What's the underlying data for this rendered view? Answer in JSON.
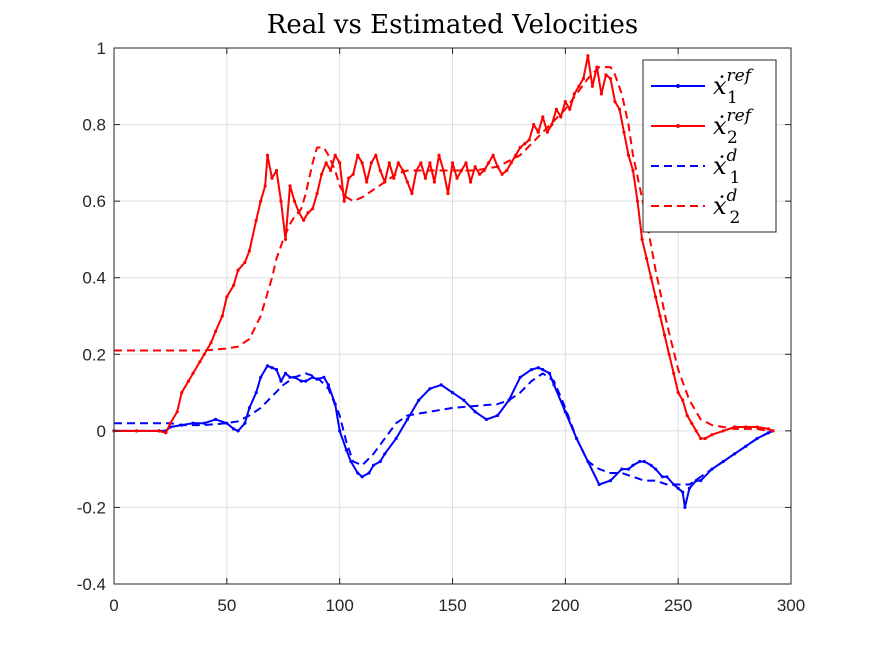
{
  "chart_data": {
    "type": "line",
    "title": "Real vs Estimated Velocities",
    "xlabel": "",
    "ylabel": "",
    "xlim": [
      0,
      300
    ],
    "ylim": [
      -0.4,
      1
    ],
    "xticks": [
      0,
      50,
      100,
      150,
      200,
      250,
      300
    ],
    "yticks": [
      -0.4,
      -0.2,
      0,
      0.2,
      0.4,
      0.6,
      0.8,
      1
    ],
    "xtick_labels": [
      "0",
      "50",
      "100",
      "150",
      "200",
      "250",
      "300"
    ],
    "ytick_labels": [
      "-0.4",
      "-0.2",
      "0",
      "0.2",
      "0.4",
      "0.6",
      "0.8",
      "1"
    ],
    "grid": true,
    "legend_position": "top-right",
    "series": [
      {
        "name": "ẋ1^ref",
        "legend_base": "ẋ",
        "legend_sub": "1",
        "legend_sup": "ref",
        "color": "#0000ff",
        "style": "solid-marker",
        "x": [
          0,
          10,
          20,
          23,
          25,
          30,
          35,
          40,
          45,
          50,
          53,
          55,
          58,
          60,
          63,
          65,
          68,
          70,
          72,
          74,
          76,
          78,
          80,
          83,
          85,
          88,
          90,
          93,
          95,
          98,
          100,
          103,
          105,
          108,
          110,
          113,
          115,
          118,
          120,
          125,
          130,
          135,
          140,
          145,
          150,
          155,
          160,
          165,
          170,
          175,
          180,
          185,
          188,
          190,
          193,
          195,
          200,
          205,
          210,
          215,
          220,
          225,
          228,
          230,
          233,
          235,
          238,
          240,
          243,
          245,
          248,
          250,
          252,
          253,
          255,
          258,
          260,
          265,
          270,
          275,
          280,
          285,
          290,
          292
        ],
        "y": [
          0,
          0,
          0,
          0,
          0.01,
          0.015,
          0.02,
          0.02,
          0.03,
          0.02,
          0.005,
          0.0,
          0.02,
          0.06,
          0.1,
          0.14,
          0.17,
          0.165,
          0.16,
          0.13,
          0.15,
          0.14,
          0.14,
          0.13,
          0.13,
          0.14,
          0.135,
          0.14,
          0.12,
          0.07,
          0.0,
          -0.05,
          -0.08,
          -0.11,
          -0.12,
          -0.11,
          -0.09,
          -0.08,
          -0.06,
          -0.02,
          0.03,
          0.08,
          0.11,
          0.12,
          0.1,
          0.08,
          0.05,
          0.03,
          0.04,
          0.08,
          0.14,
          0.16,
          0.165,
          0.16,
          0.15,
          0.12,
          0.05,
          -0.02,
          -0.08,
          -0.14,
          -0.13,
          -0.1,
          -0.1,
          -0.09,
          -0.08,
          -0.08,
          -0.09,
          -0.1,
          -0.12,
          -0.12,
          -0.14,
          -0.15,
          -0.16,
          -0.2,
          -0.15,
          -0.13,
          -0.13,
          -0.1,
          -0.08,
          -0.06,
          -0.04,
          -0.02,
          -0.005,
          0
        ]
      },
      {
        "name": "ẋ2^ref",
        "legend_base": "ẋ",
        "legend_sub": "2",
        "legend_sup": "ref",
        "color": "#ff0000",
        "style": "solid-marker",
        "x": [
          0,
          10,
          20,
          23,
          25,
          28,
          30,
          33,
          35,
          38,
          40,
          43,
          45,
          48,
          50,
          53,
          55,
          58,
          60,
          63,
          65,
          67,
          68,
          70,
          72,
          74,
          76,
          78,
          80,
          82,
          84,
          86,
          88,
          90,
          92,
          94,
          96,
          98,
          100,
          102,
          104,
          106,
          108,
          110,
          112,
          114,
          116,
          118,
          120,
          122,
          124,
          126,
          128,
          130,
          132,
          134,
          136,
          138,
          140,
          142,
          144,
          146,
          148,
          150,
          152,
          154,
          156,
          158,
          160,
          162,
          164,
          166,
          168,
          170,
          172,
          174,
          176,
          178,
          180,
          182,
          184,
          186,
          188,
          190,
          192,
          194,
          196,
          198,
          200,
          202,
          204,
          206,
          208,
          210,
          212,
          214,
          216,
          218,
          220,
          222,
          224,
          226,
          228,
          230,
          232,
          234,
          236,
          238,
          240,
          242,
          244,
          246,
          248,
          250,
          252,
          254,
          256,
          258,
          260,
          262,
          265,
          270,
          275,
          280,
          285,
          290,
          292
        ],
        "y": [
          0,
          0,
          0,
          -0.005,
          0.02,
          0.05,
          0.1,
          0.13,
          0.15,
          0.18,
          0.2,
          0.23,
          0.26,
          0.3,
          0.35,
          0.38,
          0.42,
          0.44,
          0.47,
          0.55,
          0.6,
          0.64,
          0.72,
          0.66,
          0.68,
          0.6,
          0.5,
          0.64,
          0.6,
          0.57,
          0.55,
          0.57,
          0.58,
          0.62,
          0.67,
          0.7,
          0.68,
          0.72,
          0.7,
          0.6,
          0.66,
          0.67,
          0.72,
          0.7,
          0.65,
          0.7,
          0.72,
          0.68,
          0.65,
          0.7,
          0.66,
          0.7,
          0.68,
          0.65,
          0.62,
          0.68,
          0.7,
          0.66,
          0.7,
          0.65,
          0.72,
          0.68,
          0.62,
          0.7,
          0.66,
          0.68,
          0.7,
          0.65,
          0.69,
          0.67,
          0.68,
          0.7,
          0.72,
          0.69,
          0.67,
          0.68,
          0.7,
          0.72,
          0.74,
          0.75,
          0.76,
          0.8,
          0.78,
          0.82,
          0.78,
          0.8,
          0.84,
          0.82,
          0.86,
          0.84,
          0.88,
          0.9,
          0.92,
          0.98,
          0.9,
          0.95,
          0.88,
          0.93,
          0.92,
          0.86,
          0.84,
          0.78,
          0.72,
          0.68,
          0.6,
          0.5,
          0.45,
          0.4,
          0.35,
          0.3,
          0.25,
          0.2,
          0.15,
          0.1,
          0.08,
          0.04,
          0.02,
          0.0,
          -0.02,
          -0.02,
          -0.01,
          0.0,
          0.01,
          0.01,
          0.01,
          0.005,
          0
        ]
      },
      {
        "name": "ẋ1^d",
        "legend_base": "ẋ",
        "legend_sub": "1",
        "legend_sup": "d",
        "color": "#0000ff",
        "style": "dashed",
        "x": [
          0,
          10,
          20,
          25,
          30,
          40,
          50,
          55,
          60,
          65,
          70,
          75,
          80,
          85,
          90,
          95,
          100,
          103,
          106,
          110,
          115,
          120,
          125,
          130,
          140,
          150,
          160,
          170,
          175,
          180,
          185,
          190,
          195,
          200,
          205,
          210,
          215,
          220,
          225,
          230,
          235,
          240,
          245,
          250,
          255,
          260,
          265,
          270,
          275,
          280,
          285,
          290,
          292
        ],
        "y": [
          0.02,
          0.02,
          0.02,
          0.02,
          0.015,
          0.015,
          0.02,
          0.025,
          0.04,
          0.06,
          0.09,
          0.12,
          0.14,
          0.15,
          0.14,
          0.11,
          0.04,
          -0.03,
          -0.08,
          -0.09,
          -0.06,
          -0.02,
          0.02,
          0.04,
          0.05,
          0.06,
          0.065,
          0.07,
          0.08,
          0.1,
          0.13,
          0.15,
          0.13,
          0.06,
          -0.02,
          -0.08,
          -0.1,
          -0.11,
          -0.11,
          -0.12,
          -0.13,
          -0.13,
          -0.14,
          -0.14,
          -0.14,
          -0.12,
          -0.1,
          -0.08,
          -0.06,
          -0.04,
          -0.02,
          -0.005,
          0
        ]
      },
      {
        "name": "ẋ2^d",
        "legend_base": "ẋ",
        "legend_sub": "2",
        "legend_sup": "d",
        "color": "#ff0000",
        "style": "dashed",
        "x": [
          0,
          10,
          20,
          30,
          40,
          50,
          55,
          60,
          65,
          68,
          70,
          72,
          75,
          78,
          80,
          83,
          85,
          88,
          90,
          93,
          95,
          98,
          100,
          103,
          106,
          110,
          115,
          120,
          125,
          130,
          140,
          150,
          160,
          170,
          180,
          190,
          200,
          205,
          210,
          215,
          218,
          220,
          222,
          225,
          228,
          230,
          235,
          240,
          245,
          250,
          255,
          258,
          260,
          265,
          270,
          275,
          280,
          285,
          290,
          292
        ],
        "y": [
          0.21,
          0.21,
          0.21,
          0.21,
          0.21,
          0.215,
          0.22,
          0.24,
          0.3,
          0.36,
          0.4,
          0.45,
          0.5,
          0.54,
          0.56,
          0.58,
          0.62,
          0.7,
          0.74,
          0.74,
          0.72,
          0.68,
          0.64,
          0.61,
          0.6,
          0.61,
          0.63,
          0.65,
          0.67,
          0.68,
          0.68,
          0.68,
          0.68,
          0.69,
          0.72,
          0.78,
          0.84,
          0.88,
          0.92,
          0.95,
          0.95,
          0.95,
          0.93,
          0.88,
          0.8,
          0.72,
          0.58,
          0.42,
          0.28,
          0.16,
          0.08,
          0.05,
          0.03,
          0.015,
          0.01,
          0.005,
          0.005,
          0.005,
          0.0,
          0
        ]
      }
    ]
  }
}
